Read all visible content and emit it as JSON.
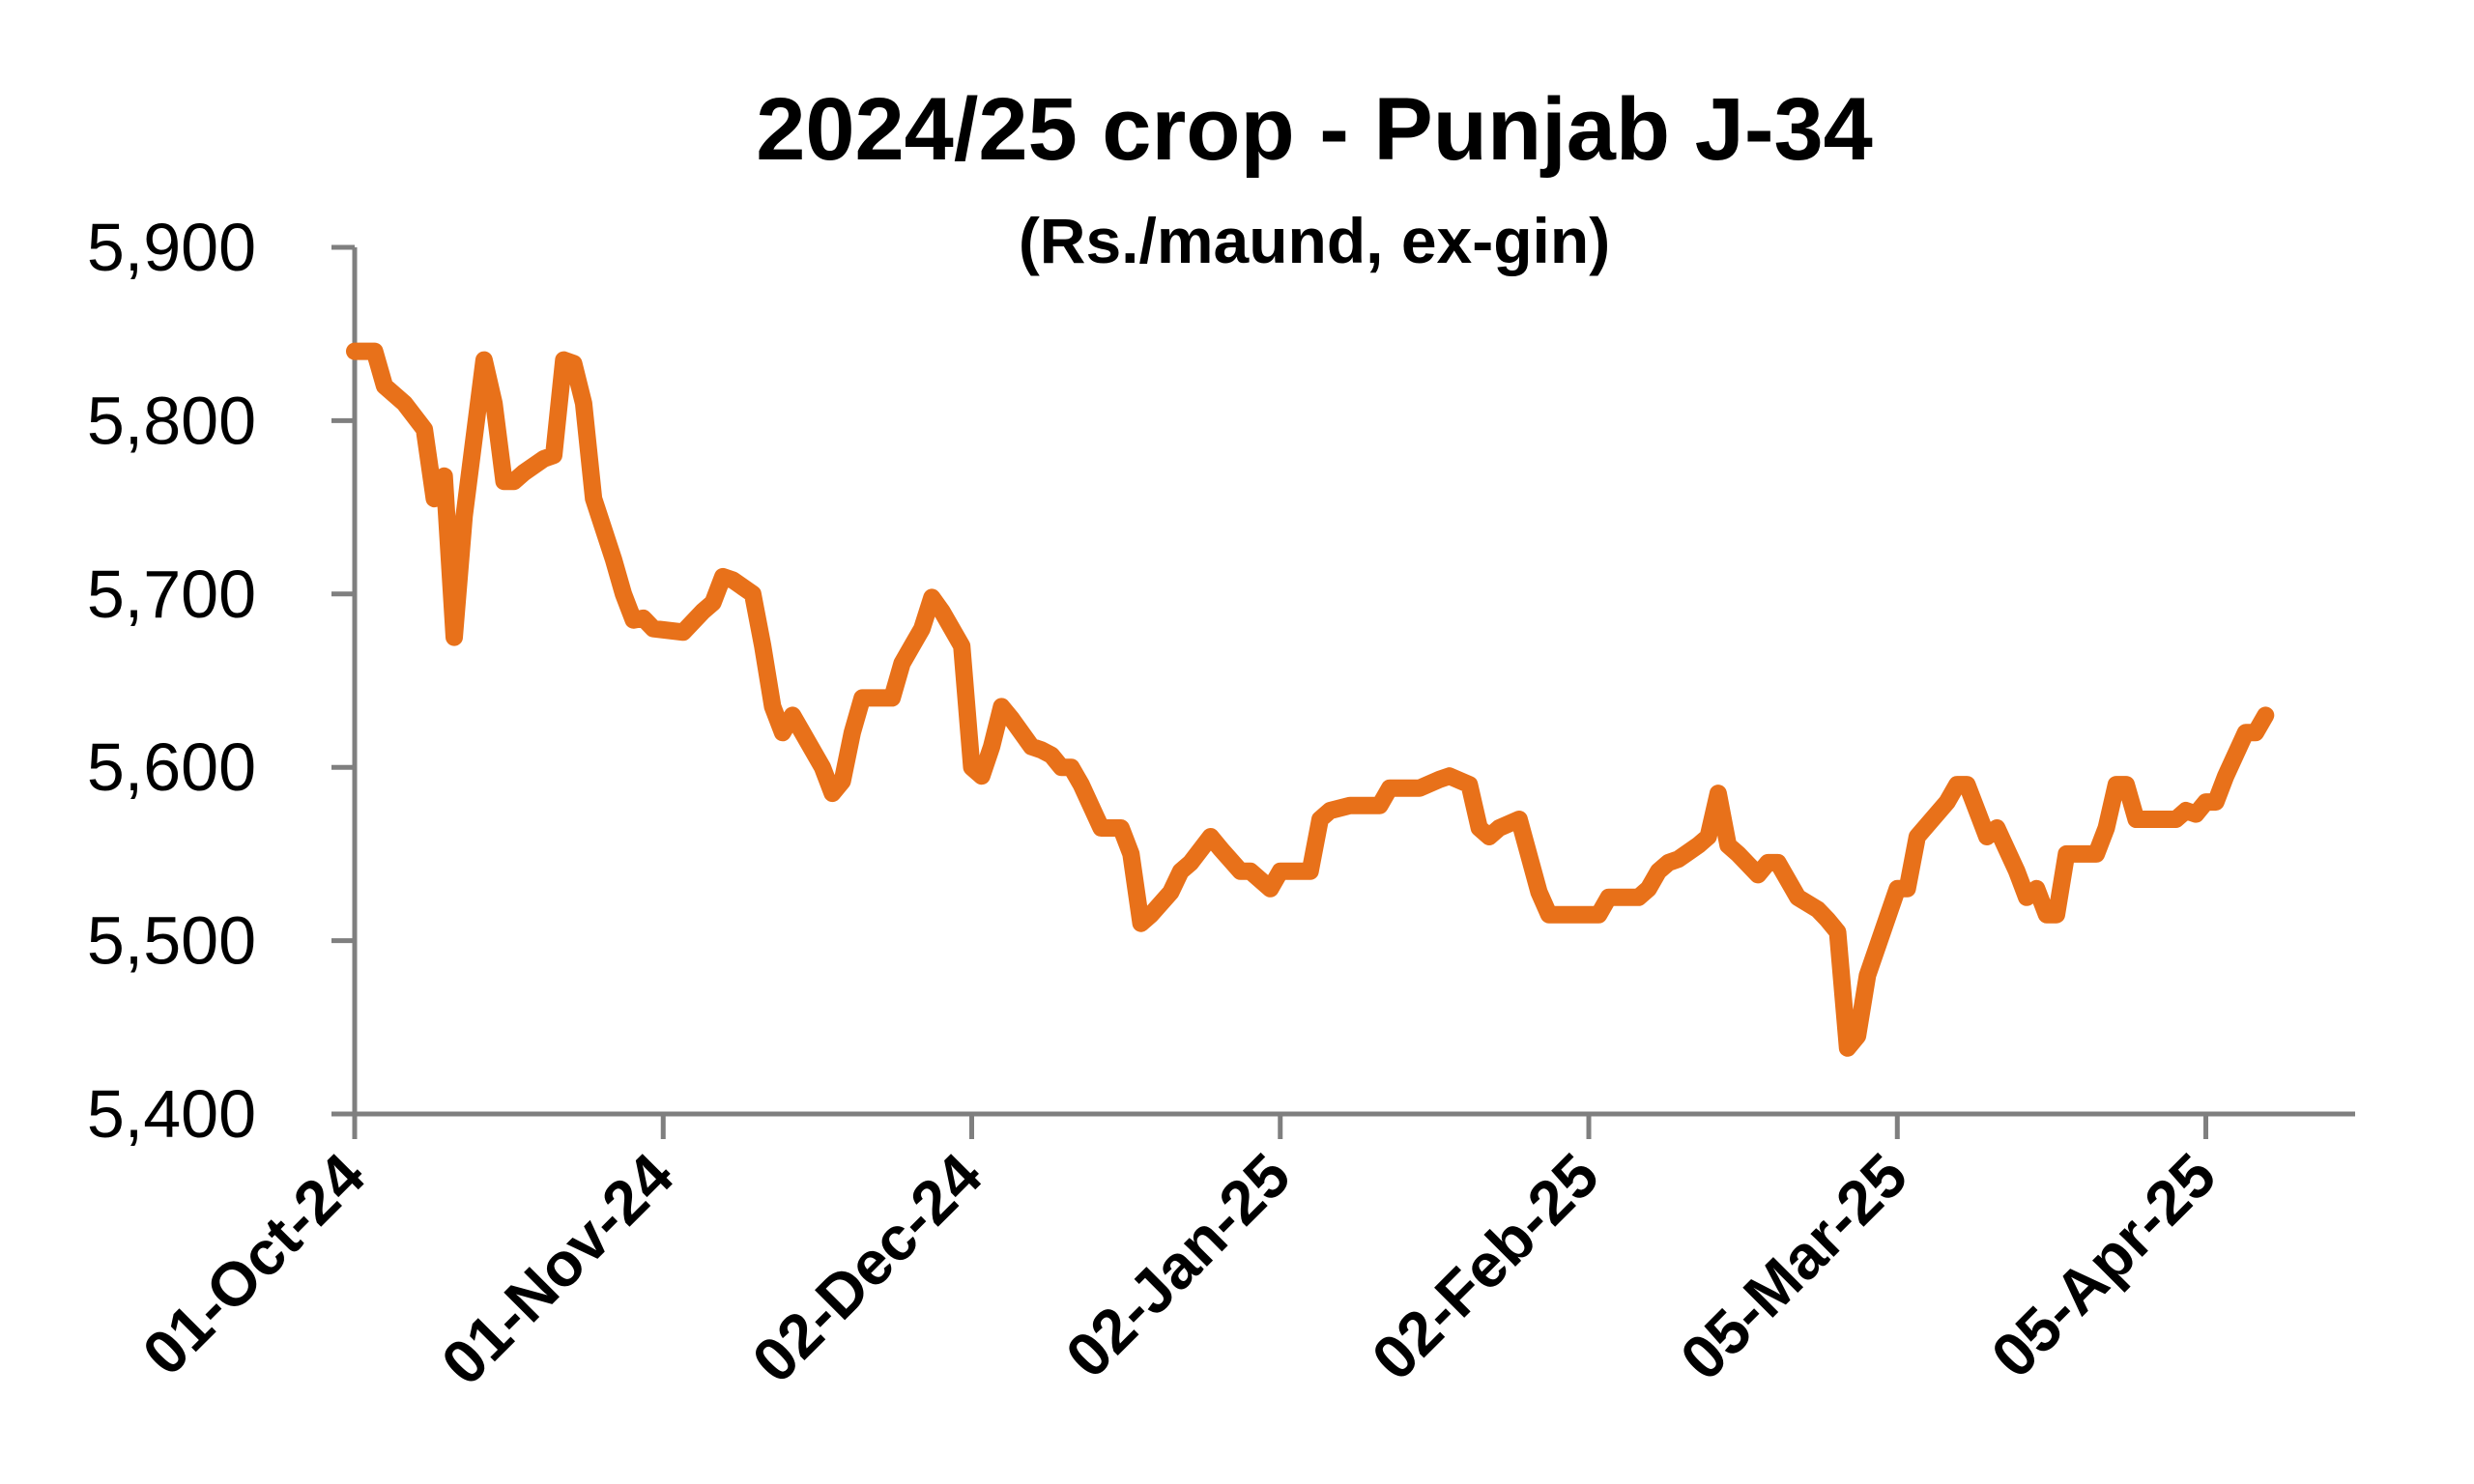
{
  "chart_data": {
    "type": "line",
    "title": "2024/25 crop - Punjab J-34",
    "subtitle": "(Rs./maund, ex-gin)",
    "xlabel": "",
    "ylabel": "",
    "ylim": [
      5400,
      5900
    ],
    "yticks": [
      "5,900",
      "5,800",
      "5,700",
      "5,600",
      "5,500",
      "5,400"
    ],
    "ytick_values": [
      5900,
      5800,
      5700,
      5600,
      5500,
      5400
    ],
    "xticks": [
      "01-Oct-24",
      "01-Nov-24",
      "02-Dec-24",
      "02-Jan-25",
      "02-Feb-25",
      "05-Mar-25",
      "05-Apr-25"
    ],
    "xtick_values": [
      "2024-10-01",
      "2024-11-01",
      "2024-12-02",
      "2025-01-02",
      "2025-02-02",
      "2025-03-05",
      "2025-04-05"
    ],
    "xlim": [
      "2024-10-01",
      "2025-04-20"
    ],
    "grid": false,
    "line_color": "#e8711a",
    "series": [
      {
        "values": [
          [
            "2024-10-01",
            5840
          ],
          [
            "2024-10-03",
            5840
          ],
          [
            "2024-10-04",
            5820
          ],
          [
            "2024-10-06",
            5810
          ],
          [
            "2024-10-08",
            5795
          ],
          [
            "2024-10-09",
            5755
          ],
          [
            "2024-10-10",
            5768
          ],
          [
            "2024-10-11",
            5675
          ],
          [
            "2024-10-12",
            5745
          ],
          [
            "2024-10-14",
            5835
          ],
          [
            "2024-10-15",
            5810
          ],
          [
            "2024-10-16",
            5765
          ],
          [
            "2024-10-17",
            5765
          ],
          [
            "2024-10-18",
            5770
          ],
          [
            "2024-10-20",
            5778
          ],
          [
            "2024-10-21",
            5780
          ],
          [
            "2024-10-22",
            5835
          ],
          [
            "2024-10-23",
            5833
          ],
          [
            "2024-10-24",
            5810
          ],
          [
            "2024-10-25",
            5755
          ],
          [
            "2024-10-27",
            5720
          ],
          [
            "2024-10-28",
            5700
          ],
          [
            "2024-10-29",
            5685
          ],
          [
            "2024-10-30",
            5686
          ],
          [
            "2024-10-31",
            5680
          ],
          [
            "2024-11-03",
            5678
          ],
          [
            "2024-11-05",
            5690
          ],
          [
            "2024-11-06",
            5695
          ],
          [
            "2024-11-07",
            5710
          ],
          [
            "2024-11-08",
            5708
          ],
          [
            "2024-11-10",
            5700
          ],
          [
            "2024-11-11",
            5670
          ],
          [
            "2024-11-12",
            5635
          ],
          [
            "2024-11-13",
            5620
          ],
          [
            "2024-11-14",
            5630
          ],
          [
            "2024-11-15",
            5620
          ],
          [
            "2024-11-17",
            5600
          ],
          [
            "2024-11-18",
            5585
          ],
          [
            "2024-11-19",
            5592
          ],
          [
            "2024-11-20",
            5620
          ],
          [
            "2024-11-21",
            5640
          ],
          [
            "2024-11-24",
            5640
          ],
          [
            "2024-11-25",
            5660
          ],
          [
            "2024-11-26",
            5670
          ],
          [
            "2024-11-27",
            5680
          ],
          [
            "2024-11-28",
            5698
          ],
          [
            "2024-11-29",
            5690
          ],
          [
            "2024-12-01",
            5670
          ],
          [
            "2024-12-02",
            5600
          ],
          [
            "2024-12-03",
            5595
          ],
          [
            "2024-12-04",
            5612
          ],
          [
            "2024-12-05",
            5635
          ],
          [
            "2024-12-06",
            5628
          ],
          [
            "2024-12-08",
            5612
          ],
          [
            "2024-12-09",
            5610
          ],
          [
            "2024-12-10",
            5607
          ],
          [
            "2024-12-11",
            5600
          ],
          [
            "2024-12-12",
            5600
          ],
          [
            "2024-12-13",
            5590
          ],
          [
            "2024-12-15",
            5565
          ],
          [
            "2024-12-17",
            5565
          ],
          [
            "2024-12-18",
            5550
          ],
          [
            "2024-12-19",
            5510
          ],
          [
            "2024-12-20",
            5515
          ],
          [
            "2024-12-22",
            5528
          ],
          [
            "2024-12-23",
            5540
          ],
          [
            "2024-12-24",
            5545
          ],
          [
            "2024-12-26",
            5560
          ],
          [
            "2024-12-27",
            5553
          ],
          [
            "2024-12-29",
            5540
          ],
          [
            "2024-12-30",
            5540
          ],
          [
            "2024-12-31",
            5535
          ],
          [
            "2025-01-01",
            5530
          ],
          [
            "2025-01-02",
            5540
          ],
          [
            "2025-01-05",
            5540
          ],
          [
            "2025-01-06",
            5570
          ],
          [
            "2025-01-07",
            5575
          ],
          [
            "2025-01-09",
            5578
          ],
          [
            "2025-01-10",
            5578
          ],
          [
            "2025-01-12",
            5578
          ],
          [
            "2025-01-13",
            5588
          ],
          [
            "2025-01-16",
            5588
          ],
          [
            "2025-01-18",
            5593
          ],
          [
            "2025-01-19",
            5595
          ],
          [
            "2025-01-21",
            5590
          ],
          [
            "2025-01-22",
            5565
          ],
          [
            "2025-01-23",
            5560
          ],
          [
            "2025-01-24",
            5565
          ],
          [
            "2025-01-26",
            5570
          ],
          [
            "2025-01-28",
            5528
          ],
          [
            "2025-01-29",
            5515
          ],
          [
            "2025-02-03",
            5515
          ],
          [
            "2025-02-04",
            5525
          ],
          [
            "2025-02-07",
            5525
          ],
          [
            "2025-02-08",
            5530
          ],
          [
            "2025-02-09",
            5540
          ],
          [
            "2025-02-10",
            5545
          ],
          [
            "2025-02-11",
            5547
          ],
          [
            "2025-02-13",
            5555
          ],
          [
            "2025-02-14",
            5560
          ],
          [
            "2025-02-15",
            5585
          ],
          [
            "2025-02-16",
            5555
          ],
          [
            "2025-02-17",
            5550
          ],
          [
            "2025-02-19",
            5538
          ],
          [
            "2025-02-20",
            5545
          ],
          [
            "2025-02-21",
            5545
          ],
          [
            "2025-02-23",
            5525
          ],
          [
            "2025-02-25",
            5518
          ],
          [
            "2025-02-26",
            5512
          ],
          [
            "2025-02-27",
            5505
          ],
          [
            "2025-02-28",
            5438
          ],
          [
            "2025-03-01",
            5445
          ],
          [
            "2025-03-02",
            5480
          ],
          [
            "2025-03-05",
            5530
          ],
          [
            "2025-03-06",
            5530
          ],
          [
            "2025-03-07",
            5560
          ],
          [
            "2025-03-10",
            5580
          ],
          [
            "2025-03-11",
            5590
          ],
          [
            "2025-03-12",
            5590
          ],
          [
            "2025-03-13",
            5575
          ],
          [
            "2025-03-14",
            5560
          ],
          [
            "2025-03-15",
            5565
          ],
          [
            "2025-03-17",
            5540
          ],
          [
            "2025-03-18",
            5525
          ],
          [
            "2025-03-19",
            5530
          ],
          [
            "2025-03-20",
            5515
          ],
          [
            "2025-03-21",
            5515
          ],
          [
            "2025-03-22",
            5550
          ],
          [
            "2025-03-25",
            5550
          ],
          [
            "2025-03-26",
            5565
          ],
          [
            "2025-03-27",
            5590
          ],
          [
            "2025-03-28",
            5590
          ],
          [
            "2025-03-29",
            5570
          ],
          [
            "2025-04-02",
            5570
          ],
          [
            "2025-04-03",
            5575
          ],
          [
            "2025-04-04",
            5573
          ],
          [
            "2025-04-05",
            5580
          ],
          [
            "2025-04-06",
            5580
          ],
          [
            "2025-04-07",
            5595
          ],
          [
            "2025-04-09",
            5620
          ],
          [
            "2025-04-10",
            5620
          ],
          [
            "2025-04-11",
            5630
          ]
        ]
      }
    ]
  }
}
